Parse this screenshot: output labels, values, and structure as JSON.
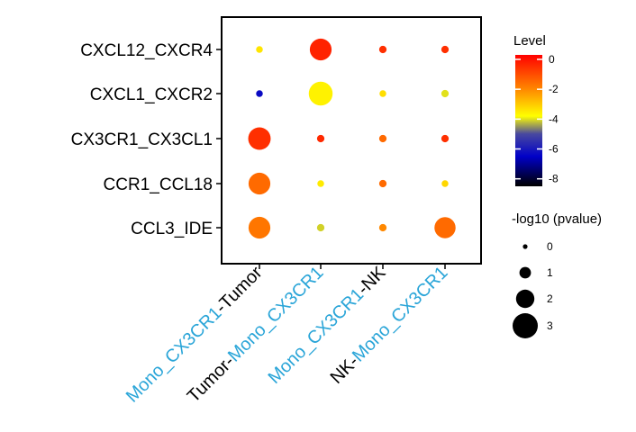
{
  "chart_data": {
    "type": "scatter",
    "subtype": "dot-plot",
    "y_categories": [
      "CXCL12_CXCR4",
      "CXCL1_CXCR2",
      "CX3CR1_CX3CL1",
      "CCR1_CCL18",
      "CCL3_IDE"
    ],
    "x_categories": [
      {
        "parts": [
          {
            "text": "Mono_CX3CR1",
            "color": "#2aa5d8"
          },
          {
            "text": "-Tumor",
            "color": "#000000"
          }
        ]
      },
      {
        "parts": [
          {
            "text": "Tumor-",
            "color": "#000000"
          },
          {
            "text": "Mono_CX3CR1",
            "color": "#2aa5d8"
          }
        ]
      },
      {
        "parts": [
          {
            "text": "Mono_CX3CR1",
            "color": "#2aa5d8"
          },
          {
            "text": "-NK",
            "color": "#000000"
          }
        ]
      },
      {
        "parts": [
          {
            "text": "NK-",
            "color": "#000000"
          },
          {
            "text": "Mono_CX3CR1",
            "color": "#2aa5d8"
          }
        ]
      }
    ],
    "points": [
      {
        "row": 0,
        "col": 0,
        "level": -3.4,
        "size": 0.3
      },
      {
        "row": 0,
        "col": 1,
        "level": -0.3,
        "size": 2.5
      },
      {
        "row": 0,
        "col": 2,
        "level": -0.5,
        "size": 0.4
      },
      {
        "row": 0,
        "col": 3,
        "level": -0.5,
        "size": 0.4
      },
      {
        "row": 1,
        "col": 0,
        "level": -6.3,
        "size": 0.3
      },
      {
        "row": 1,
        "col": 1,
        "level": -3.6,
        "size": 2.8
      },
      {
        "row": 1,
        "col": 2,
        "level": -3.3,
        "size": 0.3
      },
      {
        "row": 1,
        "col": 3,
        "level": -4.0,
        "size": 0.4
      },
      {
        "row": 2,
        "col": 0,
        "level": -0.5,
        "size": 2.6
      },
      {
        "row": 2,
        "col": 1,
        "level": -0.4,
        "size": 0.4
      },
      {
        "row": 2,
        "col": 2,
        "level": -1.5,
        "size": 0.4
      },
      {
        "row": 2,
        "col": 3,
        "level": -0.5,
        "size": 0.4
      },
      {
        "row": 3,
        "col": 0,
        "level": -1.5,
        "size": 2.5
      },
      {
        "row": 3,
        "col": 1,
        "level": -3.5,
        "size": 0.3
      },
      {
        "row": 3,
        "col": 2,
        "level": -1.5,
        "size": 0.4
      },
      {
        "row": 3,
        "col": 3,
        "level": -3.2,
        "size": 0.3
      },
      {
        "row": 4,
        "col": 0,
        "level": -1.7,
        "size": 2.5
      },
      {
        "row": 4,
        "col": 1,
        "level": -4.1,
        "size": 0.4
      },
      {
        "row": 4,
        "col": 2,
        "level": -2.0,
        "size": 0.4
      },
      {
        "row": 4,
        "col": 3,
        "level": -1.5,
        "size": 2.4
      }
    ],
    "color_legend": {
      "title": "Level",
      "range": [
        -8.5,
        0.3
      ],
      "ticks": [
        "0",
        "-2",
        "-4",
        "-6",
        "-8"
      ],
      "tick_values": [
        0,
        -2,
        -4,
        -6,
        -8
      ],
      "stops": [
        {
          "value": -8.5,
          "color": "#000000"
        },
        {
          "value": -6.5,
          "color": "#0000c8"
        },
        {
          "value": -5.0,
          "color": "#4848a0"
        },
        {
          "value": -3.8,
          "color": "#ffff00"
        },
        {
          "value": -2.0,
          "color": "#ff8800"
        },
        {
          "value": 0.3,
          "color": "#ff0000"
        }
      ]
    },
    "size_legend": {
      "title": "-log10 (pvalue)",
      "labels": [
        "0",
        "1",
        "2",
        "3"
      ],
      "values": [
        0,
        1,
        2,
        3
      ]
    },
    "grid": false
  }
}
